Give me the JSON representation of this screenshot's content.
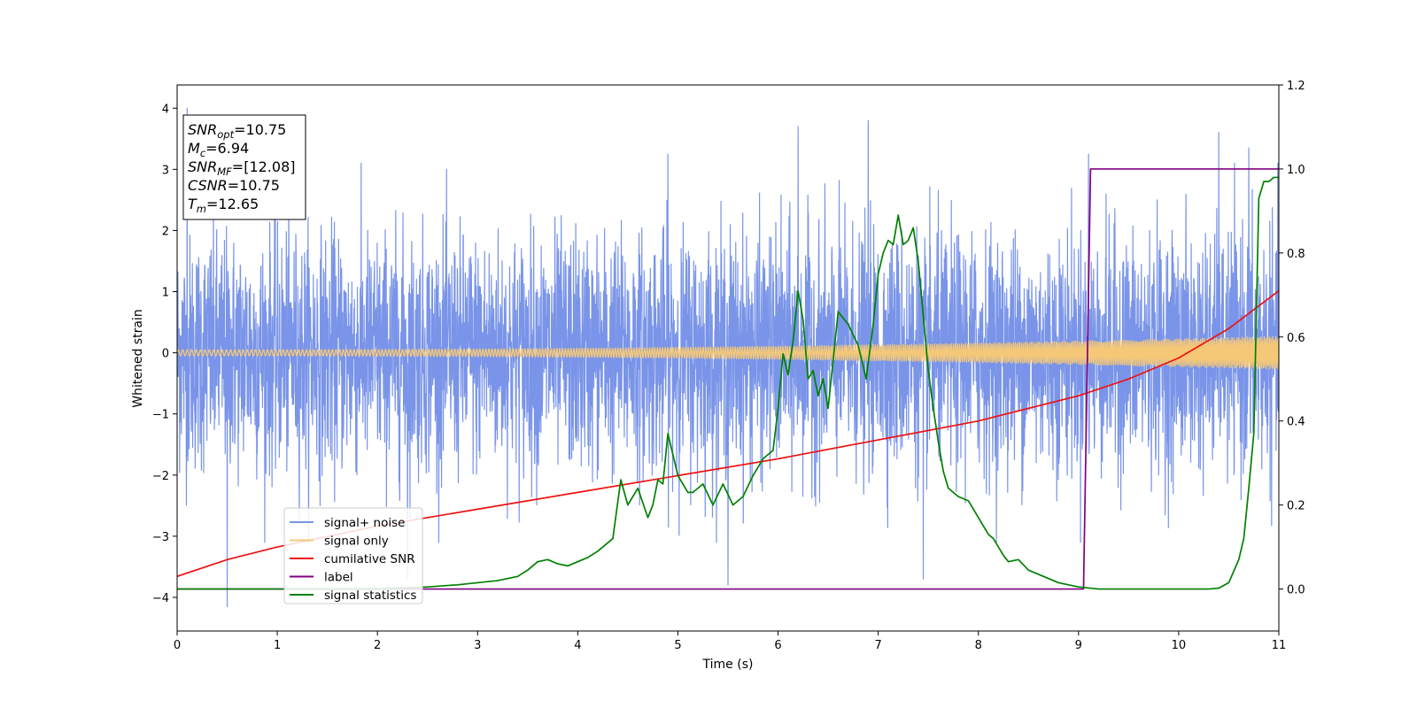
{
  "chart_data": {
    "type": "line",
    "xlabel": "Time (s)",
    "ylabel": "Whitened strain",
    "xlim": [
      0,
      11
    ],
    "ylim_left": [
      -4.55,
      4.38
    ],
    "ylim_right": [
      -0.1,
      1.2
    ],
    "x_ticks": [
      0,
      1,
      2,
      3,
      4,
      5,
      6,
      7,
      8,
      9,
      10,
      11
    ],
    "y_ticks_left": [
      -4,
      -3,
      -2,
      -1,
      0,
      1,
      2,
      3,
      4
    ],
    "y_ticks_right": [
      0.0,
      0.2,
      0.4,
      0.6,
      0.8,
      1.0,
      1.2
    ],
    "grid": false,
    "legend_position": "lower-left",
    "stats_box": [
      {
        "base": "SNR",
        "sub": "opt",
        "value": "=10.75"
      },
      {
        "base": "M",
        "sub": "c",
        "value": "=6.94"
      },
      {
        "base": "SNR",
        "sub": "MF",
        "value": "=[12.08]"
      },
      {
        "base": "CSNR",
        "sub": "",
        "value": "=10.75"
      },
      {
        "base": "T",
        "sub": "m",
        "value": "=12.65"
      }
    ],
    "series": [
      {
        "name": "signal+ noise",
        "color": "#7994e8",
        "axis": "left",
        "style": "dense noise",
        "noise_sigma": 0.95,
        "spikes": [
          [
            0.1,
            4.0
          ],
          [
            0.5,
            -4.15
          ],
          [
            2.3,
            -3.7
          ],
          [
            4.9,
            3.25
          ],
          [
            5.5,
            -3.8
          ],
          [
            6.2,
            3.7
          ],
          [
            6.9,
            3.8
          ],
          [
            7.45,
            -3.7
          ],
          [
            9.1,
            3.25
          ],
          [
            10.4,
            3.6
          ],
          [
            10.7,
            3.35
          ]
        ]
      },
      {
        "name": "signal only",
        "color": "#f5c878",
        "axis": "left",
        "style": "chirp",
        "amplitude_start": 0.05,
        "amplitude_end": 0.27,
        "frequency_start": 22,
        "frequency_end": 60
      },
      {
        "name": "cumilative SNR",
        "color": "#ee1111",
        "axis": "right",
        "x": [
          0,
          0.5,
          1,
          2,
          3,
          4,
          5,
          6,
          7,
          8,
          9,
          9.5,
          10,
          10.5,
          11
        ],
        "y": [
          0.03,
          0.07,
          0.1,
          0.15,
          0.19,
          0.23,
          0.27,
          0.31,
          0.355,
          0.4,
          0.46,
          0.5,
          0.55,
          0.62,
          0.71
        ]
      },
      {
        "name": "label",
        "color": "#800080",
        "axis": "right",
        "x": [
          0,
          9.05,
          9.12,
          11
        ],
        "y": [
          0,
          0,
          1,
          1
        ]
      },
      {
        "name": "signal statistics",
        "color": "#008000",
        "axis": "right",
        "x": [
          0,
          1,
          2,
          2.5,
          2.8,
          3.0,
          3.2,
          3.4,
          3.5,
          3.6,
          3.7,
          3.8,
          3.9,
          4.0,
          4.1,
          4.2,
          4.35,
          4.43,
          4.5,
          4.6,
          4.7,
          4.75,
          4.8,
          4.85,
          4.9,
          5.0,
          5.1,
          5.15,
          5.25,
          5.35,
          5.45,
          5.55,
          5.65,
          5.75,
          5.85,
          5.9,
          5.95,
          6.0,
          6.05,
          6.1,
          6.15,
          6.2,
          6.25,
          6.3,
          6.35,
          6.4,
          6.45,
          6.5,
          6.6,
          6.7,
          6.8,
          6.88,
          6.95,
          7.0,
          7.05,
          7.1,
          7.15,
          7.2,
          7.25,
          7.3,
          7.35,
          7.4,
          7.45,
          7.5,
          7.55,
          7.6,
          7.65,
          7.7,
          7.8,
          7.9,
          7.95,
          8.0,
          8.05,
          8.1,
          8.15,
          8.2,
          8.25,
          8.3,
          8.4,
          8.5,
          8.6,
          8.7,
          8.8,
          8.9,
          9.0,
          9.2,
          9.5,
          10,
          10.3,
          10.4,
          10.5,
          10.6,
          10.65,
          10.7,
          10.75,
          10.8,
          10.85,
          10.9,
          10.95,
          11
        ],
        "y": [
          0.0,
          0.0,
          0.0,
          0.005,
          0.01,
          0.015,
          0.02,
          0.03,
          0.045,
          0.065,
          0.07,
          0.06,
          0.055,
          0.065,
          0.075,
          0.09,
          0.12,
          0.26,
          0.2,
          0.24,
          0.17,
          0.2,
          0.26,
          0.25,
          0.37,
          0.27,
          0.23,
          0.23,
          0.25,
          0.2,
          0.25,
          0.2,
          0.22,
          0.27,
          0.31,
          0.32,
          0.33,
          0.43,
          0.56,
          0.51,
          0.59,
          0.71,
          0.64,
          0.5,
          0.52,
          0.46,
          0.5,
          0.43,
          0.66,
          0.63,
          0.58,
          0.5,
          0.63,
          0.75,
          0.8,
          0.83,
          0.82,
          0.89,
          0.82,
          0.83,
          0.86,
          0.78,
          0.65,
          0.52,
          0.43,
          0.35,
          0.28,
          0.24,
          0.22,
          0.21,
          0.19,
          0.17,
          0.15,
          0.13,
          0.12,
          0.1,
          0.08,
          0.065,
          0.07,
          0.045,
          0.035,
          0.025,
          0.015,
          0.01,
          0.005,
          0.0,
          0.0,
          0.0,
          0.0,
          0.002,
          0.015,
          0.07,
          0.12,
          0.24,
          0.37,
          0.93,
          0.97,
          0.97,
          0.98,
          0.98
        ]
      }
    ]
  }
}
